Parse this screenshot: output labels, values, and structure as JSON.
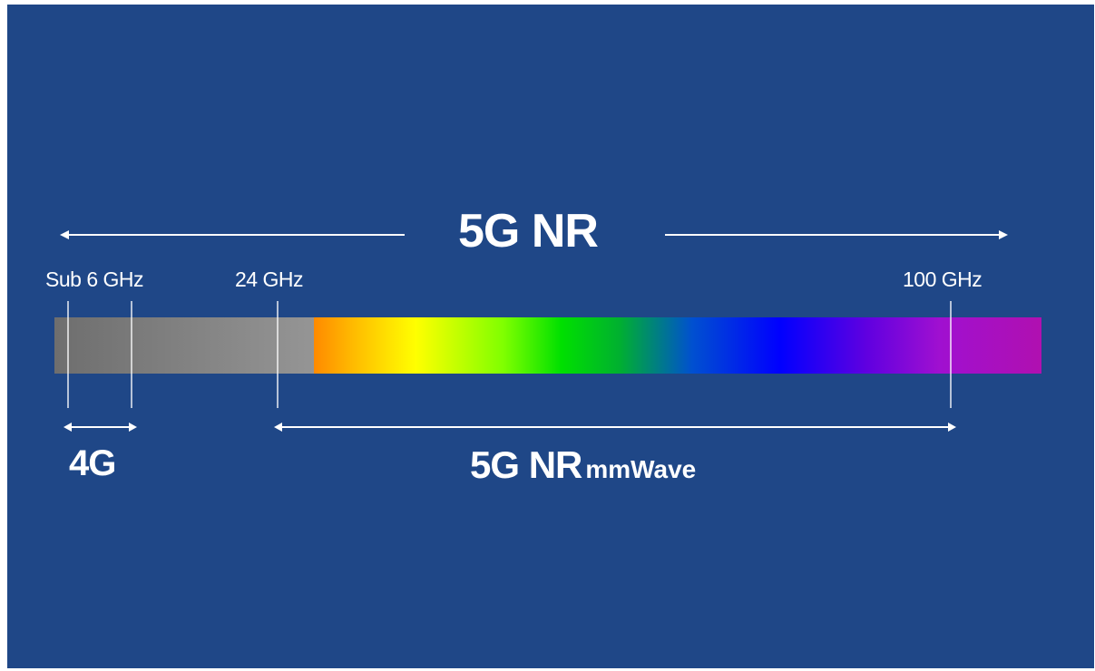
{
  "title": "5G NR",
  "frequency_markers": {
    "sub6": "Sub 6 GHz",
    "ghz24": "24 GHz",
    "ghz100": "100 GHz"
  },
  "bands": {
    "lte": "4G",
    "mmwave_main": "5G NR",
    "mmwave_suffix": "mmWave"
  },
  "colors": {
    "background": "#1f4787",
    "text": "#ffffff",
    "gray_band": "#8a8a8a",
    "spectrum_start": "#ff8c00",
    "spectrum_end": "#b010b0"
  }
}
